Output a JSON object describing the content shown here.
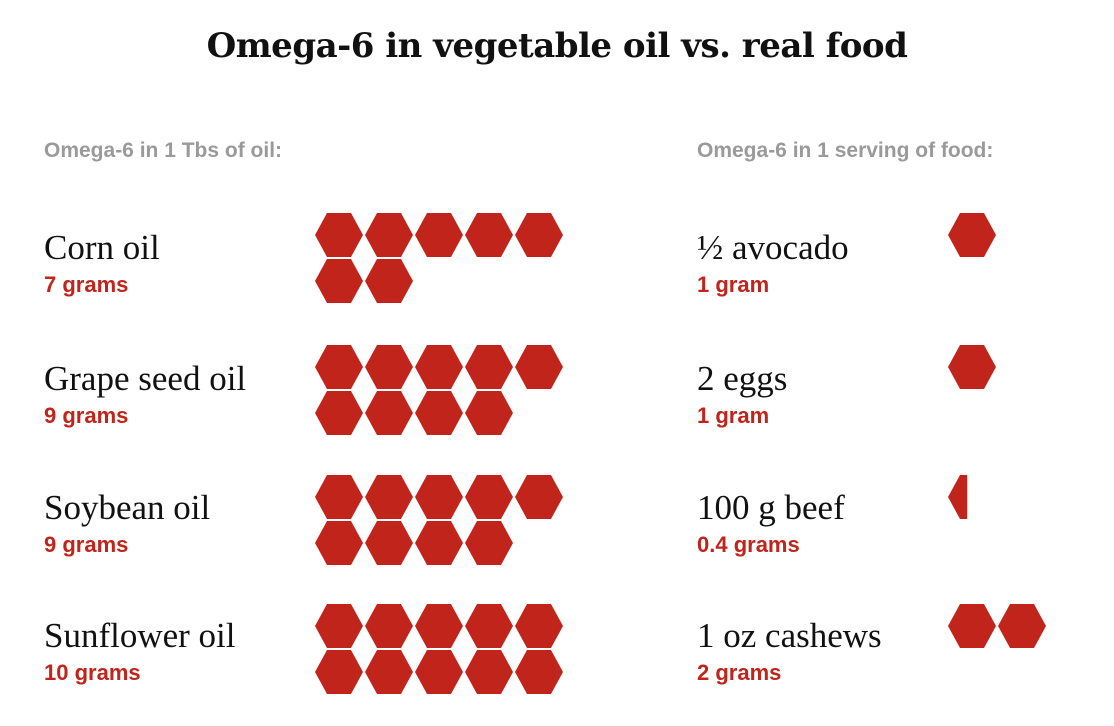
{
  "title": "Omega-6 in vegetable oil vs. real food",
  "left_header": "Omega-6 in 1 Tbs of oil:",
  "right_header": "Omega-6 in 1 serving of food:",
  "colors": {
    "hex_fill": "#c0241b",
    "amount_text": "#c0241b",
    "header_text": "#9a9a9a"
  },
  "chart_data": [
    {
      "type": "pictograph",
      "unit": "1 hexagon = 1 gram of omega-6",
      "title": "Omega-6 in 1 Tbs of oil:",
      "rows": [
        {
          "name": "Corn oil",
          "amount_label": "7 grams",
          "value": 7
        },
        {
          "name": "Grape seed oil",
          "amount_label": "9 grams",
          "value": 9
        },
        {
          "name": "Soybean oil",
          "amount_label": "9 grams",
          "value": 9
        },
        {
          "name": "Sunflower oil",
          "amount_label": "10 grams",
          "value": 10
        }
      ]
    },
    {
      "type": "pictograph",
      "unit": "1 hexagon = 1 gram of omega-6",
      "title": "Omega-6 in 1 serving of food:",
      "rows": [
        {
          "name": "½ avocado",
          "amount_label": "1 gram",
          "value": 1
        },
        {
          "name": "2 eggs",
          "amount_label": "1 gram",
          "value": 1
        },
        {
          "name": "100 g beef",
          "amount_label": "0.4 grams",
          "value": 0.4
        },
        {
          "name": "1 oz cashews",
          "amount_label": "2 grams",
          "value": 2
        }
      ]
    }
  ]
}
